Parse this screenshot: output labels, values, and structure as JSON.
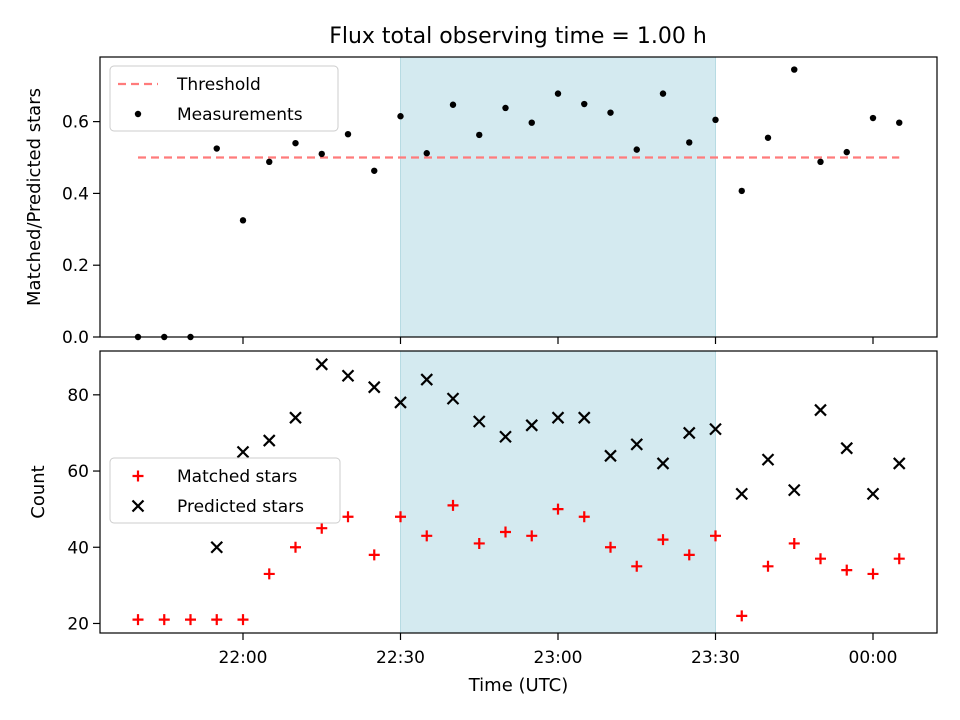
{
  "chart_data": [
    {
      "type": "scatter",
      "title": "Flux total observing time = 1.00 h",
      "xlabel": "",
      "ylabel": "Matched/Predicted stars",
      "ylim": [
        0.0,
        0.78
      ],
      "yticks": [
        "0.0",
        "0.2",
        "0.4",
        "0.6"
      ],
      "highlight_span": [
        "22:30",
        "23:30"
      ],
      "highlight_color": "#d4eaf0",
      "legend_position": "top-left",
      "series": [
        {
          "name": "Threshold",
          "style": "dashed-line",
          "color": "#ff7b7b",
          "x": [
            "21:40",
            "00:05"
          ],
          "values": [
            0.5,
            0.5
          ]
        },
        {
          "name": "Measurements",
          "style": "dot",
          "color": "#000000",
          "x": [
            "21:40",
            "21:45",
            "21:50",
            "21:55",
            "22:00",
            "22:05",
            "22:10",
            "22:15",
            "22:20",
            "22:25",
            "22:30",
            "22:35",
            "22:40",
            "22:45",
            "22:50",
            "22:55",
            "23:00",
            "23:05",
            "23:10",
            "23:15",
            "23:20",
            "23:25",
            "23:30",
            "23:35",
            "23:40",
            "23:45",
            "23:50",
            "23:55",
            "00:00",
            "00:05"
          ],
          "values": [
            0.0,
            0.0,
            0.0,
            0.525,
            0.325,
            0.488,
            0.54,
            0.51,
            0.565,
            0.463,
            0.615,
            0.512,
            0.647,
            0.563,
            0.638,
            0.597,
            0.678,
            0.649,
            0.625,
            0.522,
            0.678,
            0.542,
            0.605,
            0.407,
            0.555,
            0.745,
            0.488,
            0.515,
            0.61,
            0.597
          ]
        }
      ]
    },
    {
      "type": "scatter",
      "title": "",
      "xlabel": "Time (UTC)",
      "ylabel": "Count",
      "ylim": [
        17.5,
        91.5
      ],
      "yticks": [
        "20",
        "40",
        "60",
        "80"
      ],
      "xticks": [
        "22:00",
        "22:30",
        "23:00",
        "23:30",
        "00:00"
      ],
      "highlight_span": [
        "22:30",
        "23:30"
      ],
      "highlight_color": "#d4eaf0",
      "legend_position": "center-left",
      "series": [
        {
          "name": "Matched stars",
          "style": "plus",
          "color": "#ff0000",
          "x": [
            "21:40",
            "21:45",
            "21:50",
            "21:55",
            "22:00",
            "22:05",
            "22:10",
            "22:15",
            "22:20",
            "22:25",
            "22:30",
            "22:35",
            "22:40",
            "22:45",
            "22:50",
            "22:55",
            "23:00",
            "23:05",
            "23:10",
            "23:15",
            "23:20",
            "23:25",
            "23:30",
            "23:35",
            "23:40",
            "23:45",
            "23:50",
            "23:55",
            "00:00",
            "00:05"
          ],
          "values": [
            21,
            21,
            21,
            21,
            21,
            33,
            40,
            45,
            48,
            38,
            48,
            43,
            51,
            41,
            44,
            43,
            50,
            48,
            40,
            35,
            42,
            38,
            43,
            22,
            35,
            41,
            37,
            34,
            33,
            37
          ]
        },
        {
          "name": "Predicted stars",
          "style": "x",
          "color": "#000000",
          "x": [
            "21:55",
            "22:00",
            "22:05",
            "22:10",
            "22:15",
            "22:20",
            "22:25",
            "22:30",
            "22:35",
            "22:40",
            "22:45",
            "22:50",
            "22:55",
            "23:00",
            "23:05",
            "23:10",
            "23:15",
            "23:20",
            "23:25",
            "23:30",
            "23:35",
            "23:40",
            "23:45",
            "23:50",
            "23:55",
            "00:00",
            "00:05"
          ],
          "values": [
            40,
            65,
            68,
            74,
            88,
            85,
            82,
            78,
            84,
            79,
            73,
            69,
            72,
            74,
            74,
            64,
            67,
            62,
            70,
            71,
            54,
            63,
            55,
            76,
            66,
            54,
            62
          ]
        }
      ]
    }
  ]
}
